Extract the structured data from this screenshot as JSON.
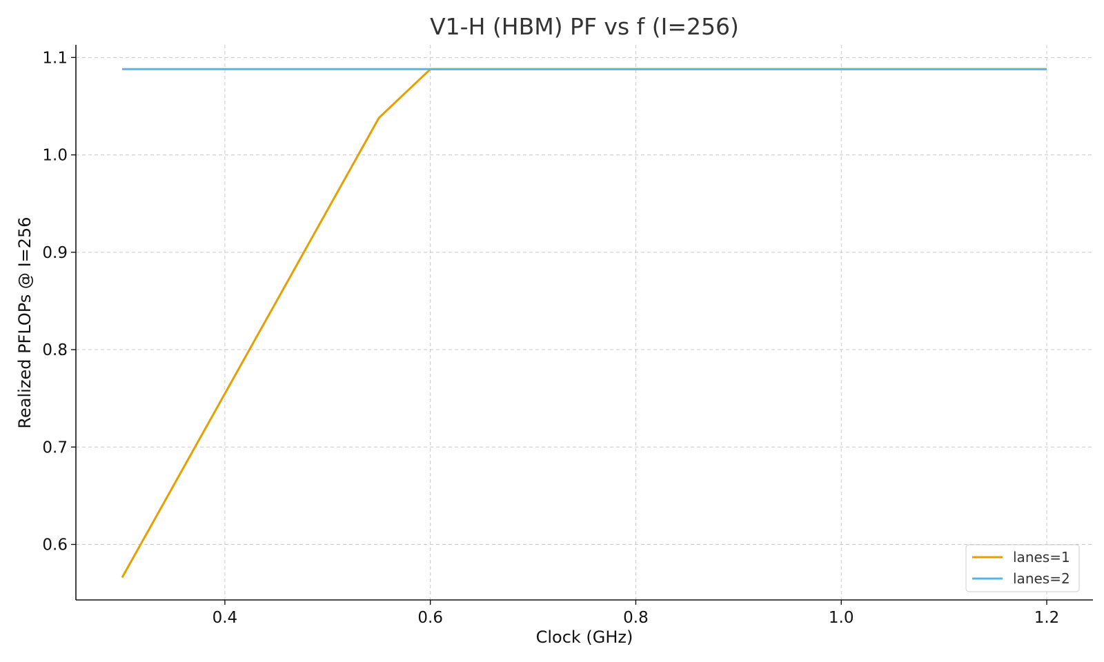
{
  "chart_data": {
    "type": "line",
    "title": "V1-H (HBM) PF vs f (I=256)",
    "xlabel": "Clock (GHz)",
    "ylabel": "Realized PFLOPs @ I=256",
    "xlim": [
      0.255,
      1.245
    ],
    "ylim": [
      0.543,
      1.113
    ],
    "xticks": [
      0.4,
      0.6,
      0.8,
      1.0,
      1.2
    ],
    "xtick_labels": [
      "0.4",
      "0.6",
      "0.8",
      "1.0",
      "1.2"
    ],
    "yticks": [
      0.6,
      0.7,
      0.8,
      0.9,
      1.0,
      1.1
    ],
    "ytick_labels": [
      "0.6",
      "0.7",
      "0.8",
      "0.9",
      "1.0",
      "1.1"
    ],
    "grid": true,
    "legend_position": "lower-right",
    "series": [
      {
        "name": "lanes=1",
        "color": "#E69F00",
        "x": [
          0.3,
          0.55,
          0.6,
          1.2
        ],
        "y": [
          0.566,
          1.038,
          1.088,
          1.088
        ]
      },
      {
        "name": "lanes=2",
        "color": "#56B4E9",
        "x": [
          0.3,
          1.2
        ],
        "y": [
          1.088,
          1.088
        ]
      }
    ]
  }
}
